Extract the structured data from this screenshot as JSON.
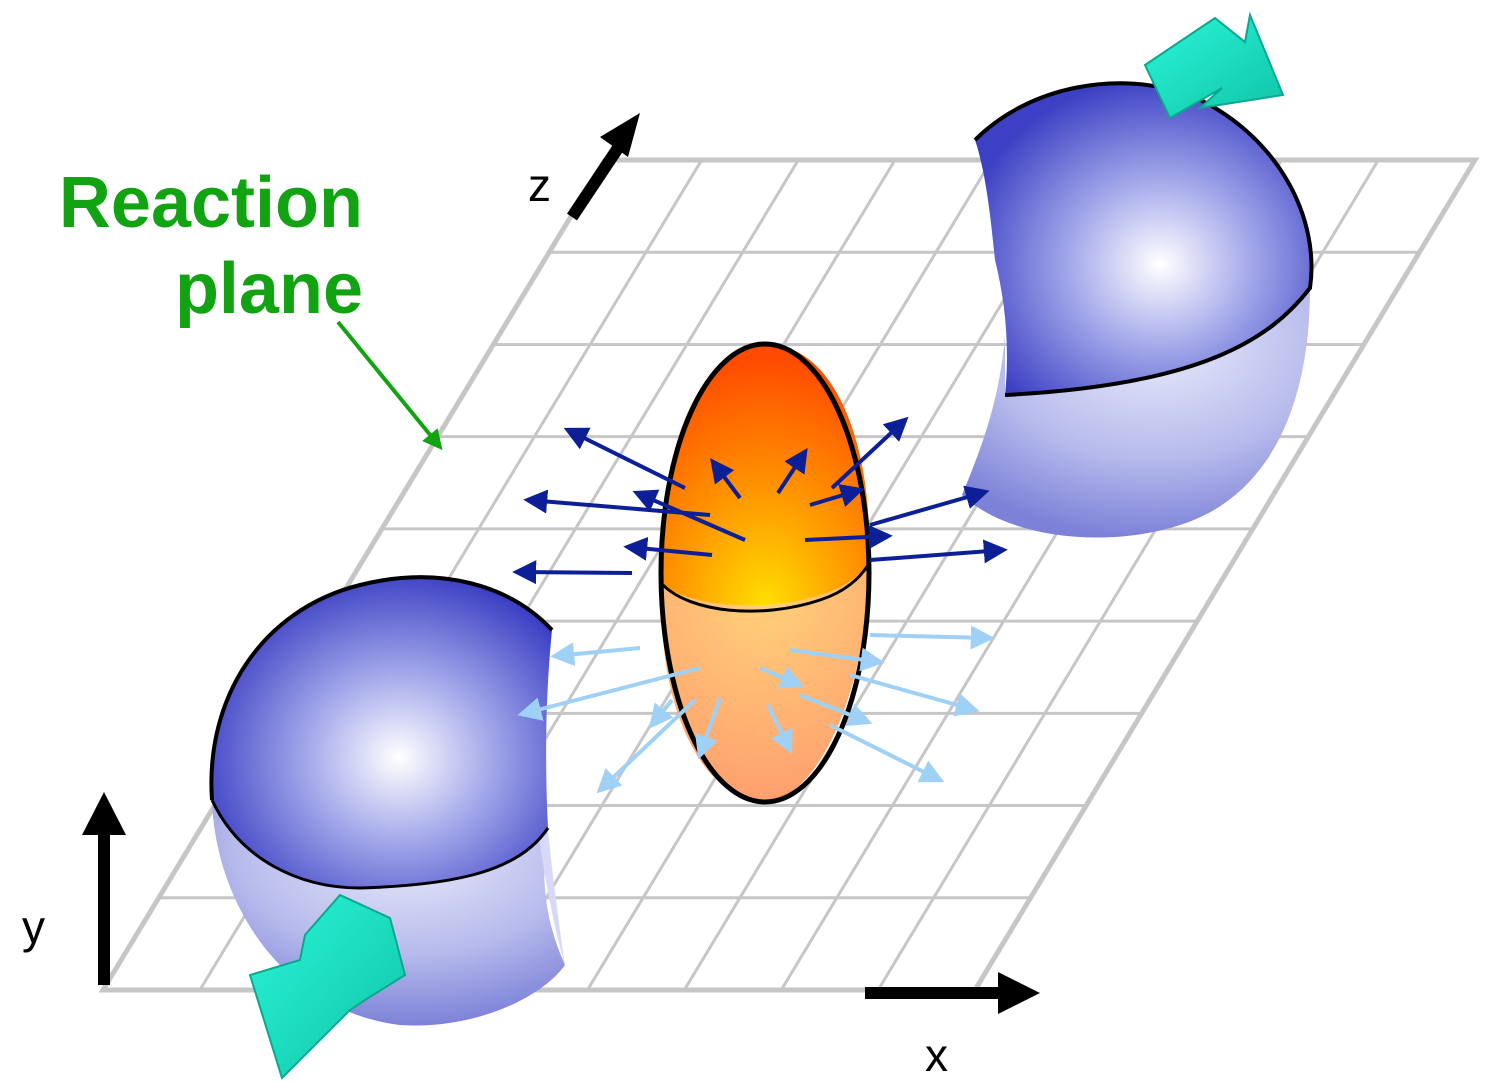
{
  "labels": {
    "reaction_line1": "Reaction",
    "reaction_line2": "plane",
    "axis_x": "x",
    "axis_y": "y",
    "axis_z": "z"
  },
  "colors": {
    "label_green": "#11a311",
    "grid": "#c6c6c6",
    "nucleus_blue": "#4b51cc",
    "fireball_orange": "#ff5a00",
    "fireball_core": "#ffd600",
    "beam_arrow": "#15e3c6",
    "flow_arrow_dark": "#0d1f96",
    "flow_arrow_light": "#9fd0f5"
  },
  "icons": [
    "beam-direction-arrow",
    "flow-arrow",
    "axis-arrow"
  ]
}
